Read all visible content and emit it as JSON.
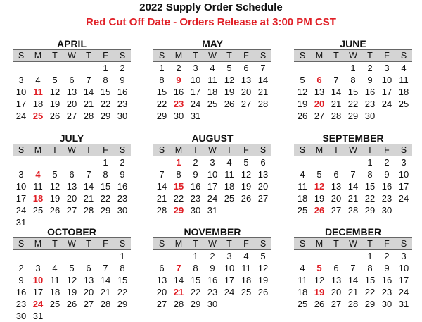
{
  "title": "2022 Supply Order Schedule",
  "subtitle": "Red Cut Off Date - Orders Release at 3:00 PM CST",
  "weekdays": [
    "S",
    "M",
    "T",
    "W",
    "T",
    "F",
    "S"
  ],
  "colors": {
    "cutoff": "#e01f26",
    "header_bg": "#d4d4d4"
  },
  "months": [
    {
      "name": "APRIL",
      "start": 5,
      "days": 30,
      "cutoff": 11
    },
    {
      "name": "MAY",
      "start": 0,
      "days": 31,
      "cutoff": 9
    },
    {
      "name": "JUNE",
      "start": 3,
      "days": 30,
      "cutoff": 6
    },
    {
      "name": "JULY",
      "start": 5,
      "days": 31,
      "cutoff": 4
    },
    {
      "name": "AUGUST",
      "start": 1,
      "days": 31,
      "cutoff": 1
    },
    {
      "name": "SEPTEMBER",
      "start": 4,
      "days": 30,
      "cutoff": 12
    },
    {
      "name": "OCTOBER",
      "start": 6,
      "days": 31,
      "cutoff": 10
    },
    {
      "name": "NOVEMBER",
      "start": 2,
      "days": 30,
      "cutoff": 7
    },
    {
      "name": "DECEMBER",
      "start": 4,
      "days": 31,
      "cutoff": 5
    }
  ],
  "second_cutoffs": {
    "APRIL": 25,
    "MAY": 23,
    "JUNE": 20,
    "JULY": 18,
    "AUGUST": 15,
    "SEPTEMBER": 26,
    "OCTOBER": 24,
    "NOVEMBER": 21,
    "DECEMBER": 19
  },
  "third_cutoffs": {
    "AUGUST": 29
  }
}
